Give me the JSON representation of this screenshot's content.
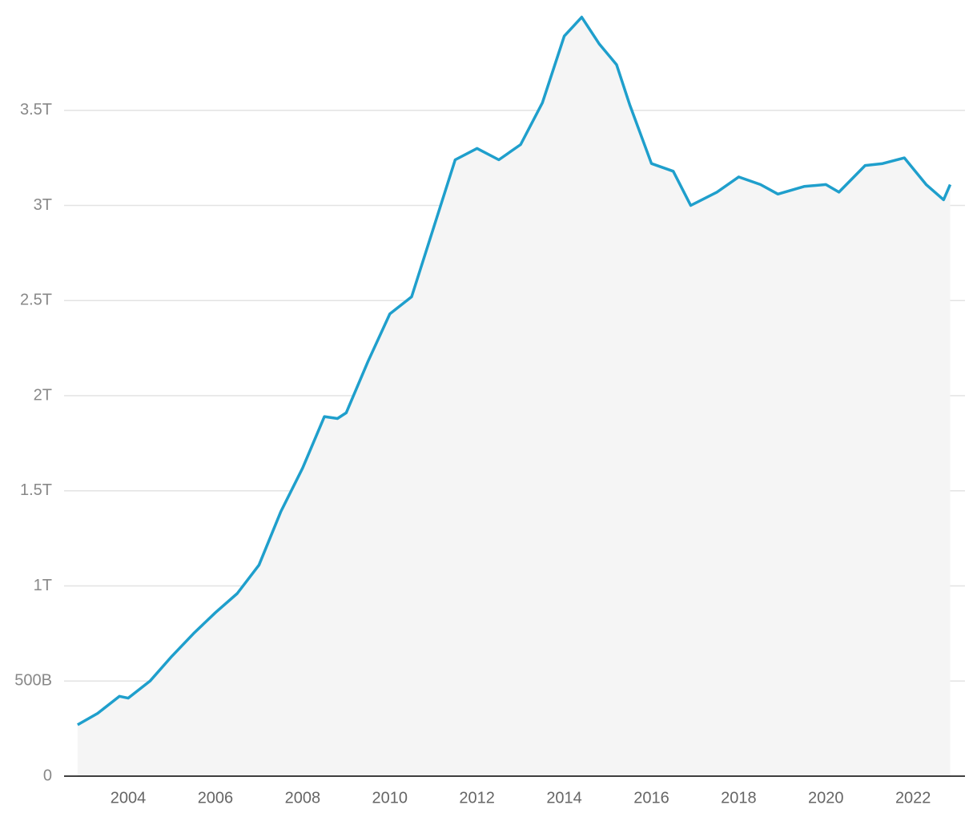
{
  "chart_data": {
    "type": "area",
    "x": [
      2002.84,
      2003.3,
      2003.8,
      2004.0,
      2004.5,
      2005.0,
      2005.5,
      2006.0,
      2006.5,
      2007.0,
      2007.5,
      2008.0,
      2008.5,
      2008.8,
      2009.0,
      2009.5,
      2010.0,
      2010.5,
      2011.0,
      2011.5,
      2012.0,
      2012.5,
      2013.0,
      2013.5,
      2014.0,
      2014.4,
      2014.8,
      2015.2,
      2015.5,
      2016.0,
      2016.5,
      2016.9,
      2017.5,
      2018.0,
      2018.5,
      2018.9,
      2019.5,
      2020.0,
      2020.3,
      2020.9,
      2021.3,
      2021.8,
      2022.3,
      2022.7,
      2022.85
    ],
    "values": [
      0.27,
      0.33,
      0.42,
      0.41,
      0.5,
      0.63,
      0.75,
      0.86,
      0.96,
      1.11,
      1.39,
      1.62,
      1.89,
      1.88,
      1.91,
      2.18,
      2.43,
      2.52,
      2.88,
      3.24,
      3.3,
      3.24,
      3.32,
      3.54,
      3.89,
      3.99,
      3.85,
      3.74,
      3.53,
      3.22,
      3.18,
      3.0,
      3.07,
      3.15,
      3.11,
      3.06,
      3.1,
      3.11,
      3.07,
      3.21,
      3.22,
      3.25,
      3.11,
      3.03,
      3.11
    ],
    "color": "#1f9fcc",
    "fill": "#f5f5f5",
    "xlim": [
      2002.53,
      2023.19
    ],
    "xticks": [
      2004,
      2006,
      2008,
      2010,
      2012,
      2014,
      2016,
      2018,
      2020,
      2022
    ],
    "ylim": [
      0,
      4.08
    ],
    "yticks": [
      0,
      {
        "value": 0.5,
        "label": "500B"
      },
      {
        "value": 1,
        "label": "1T"
      },
      {
        "value": 1.5,
        "label": "1.5T"
      },
      {
        "value": 2,
        "label": "2T"
      },
      {
        "value": 2.5,
        "label": "2.5T"
      },
      {
        "value": 3,
        "label": "3T"
      },
      {
        "value": 3.5,
        "label": "3.5T"
      }
    ],
    "grid": true
  }
}
